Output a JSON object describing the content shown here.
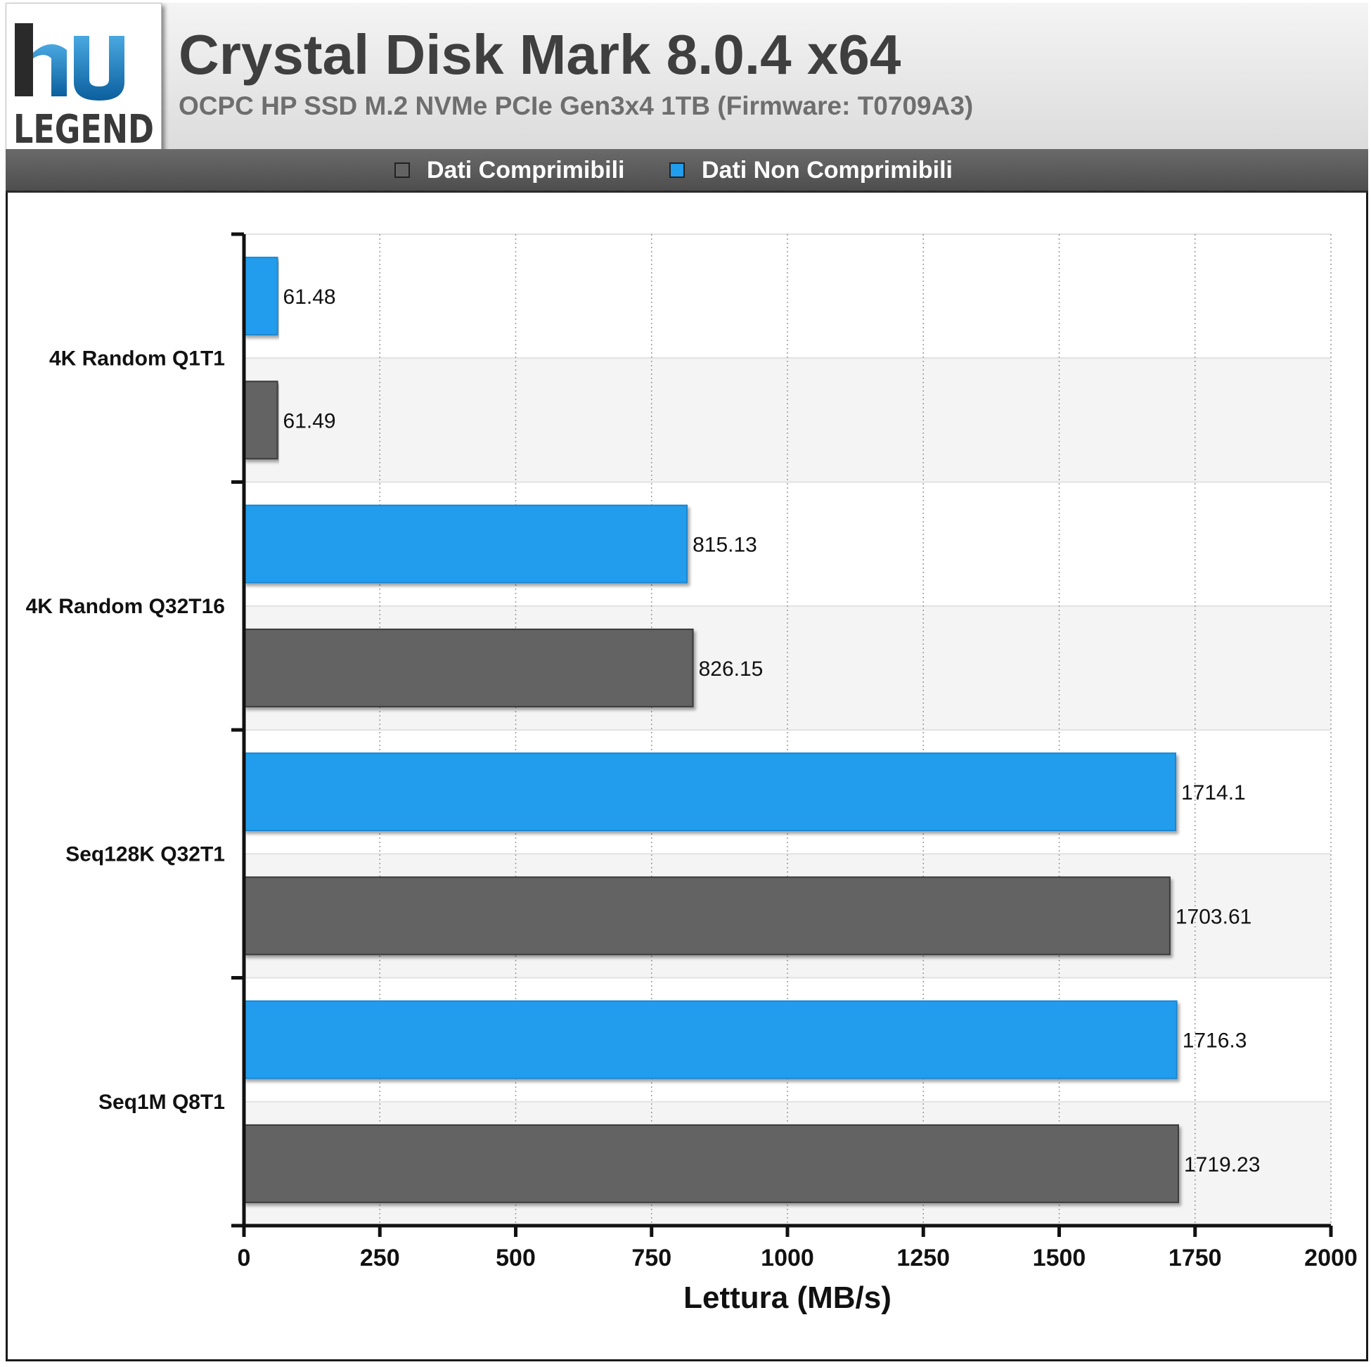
{
  "header": {
    "title": "Crystal Disk Mark 8.0.4 x64",
    "subtitle": "OCPC HP SSD M.2 NVMe PCIe Gen3x4 1TB (Firmware: T0709A3)",
    "logo_text": "LEGEND"
  },
  "colors": {
    "compressible": "#636363",
    "incompressible": "#219ded"
  },
  "chart_data": {
    "type": "bar",
    "orientation": "horizontal",
    "categories": [
      "4K Random Q1T1",
      "4K Random Q32T16",
      "Seq128K Q32T1",
      "Seq1M Q8T1"
    ],
    "series": [
      {
        "name": "Dati Non Comprimibili",
        "values": [
          61.48,
          815.13,
          1714.1,
          1716.3
        ]
      },
      {
        "name": "Dati Comprimibili",
        "values": [
          61.49,
          826.15,
          1703.61,
          1719.23
        ]
      }
    ],
    "value_labels": [
      [
        "61.48",
        "815.13",
        "1714.1",
        "1716.3"
      ],
      [
        "61.49",
        "826.15",
        "1703.61",
        "1719.23"
      ]
    ],
    "legend": [
      {
        "name": "Dati Comprimibili",
        "color": "#636363"
      },
      {
        "name": "Dati Non Comprimibili",
        "color": "#219ded"
      }
    ],
    "legend_position": "top",
    "xlabel": "Lettura (MB/s)",
    "ylabel": "",
    "xlim": [
      0,
      2000
    ],
    "xticks": [
      0,
      250,
      500,
      750,
      1000,
      1250,
      1500,
      1750,
      2000
    ],
    "xtick_labels": [
      "0",
      "250",
      "500",
      "750",
      "1000",
      "1250",
      "1500",
      "1750",
      "2000"
    ],
    "grid": true
  }
}
